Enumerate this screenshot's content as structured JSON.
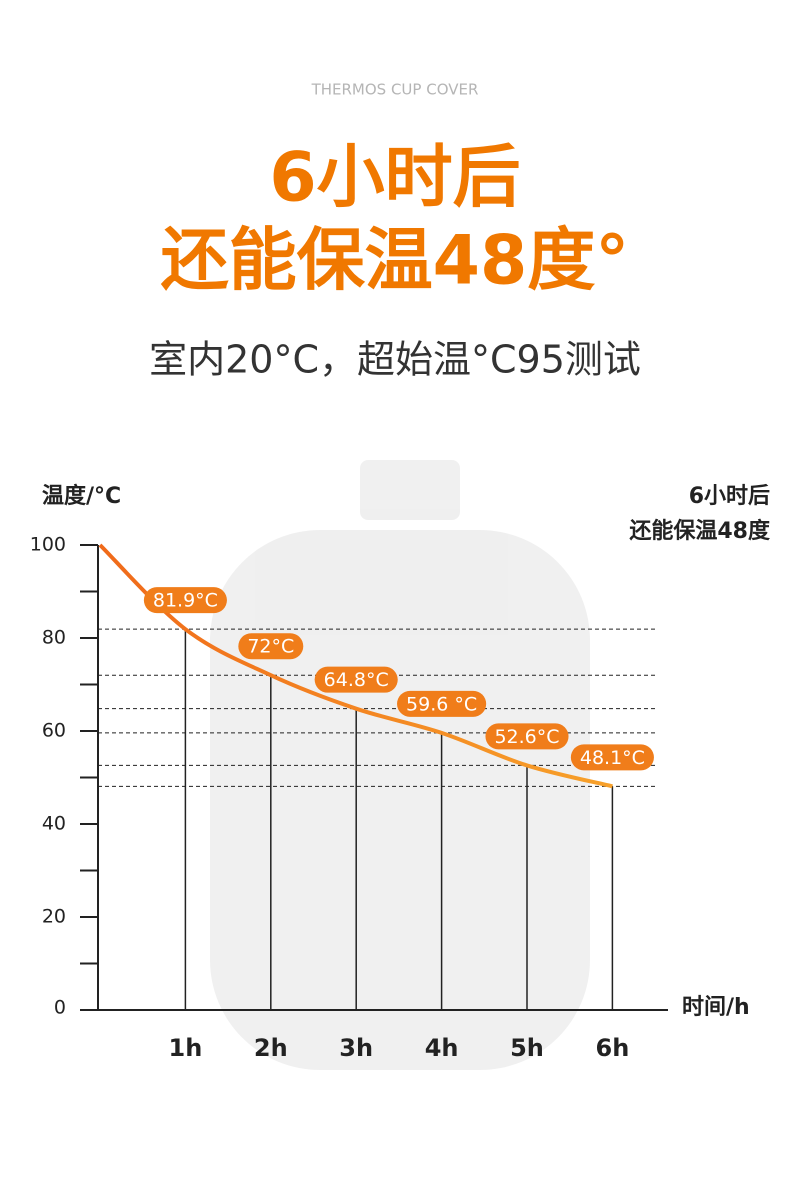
{
  "header": {
    "eyebrow": "THERMOS CUP COVER",
    "title_lines": [
      "6小时后",
      "还能保温48度°"
    ],
    "subtitle": "室内20°C，超始温°C95测试"
  },
  "chart_data": {
    "type": "line",
    "y_label": "温度/°C",
    "x_label": "时间/h",
    "annotation_lines": [
      "6小时后",
      "还能保温48度"
    ],
    "categories": [
      null,
      "1h",
      "2h",
      "3h",
      "4h",
      "5h",
      "6h"
    ],
    "values": [
      100,
      81.9,
      72,
      64.8,
      59.6,
      52.6,
      48.1
    ],
    "value_labels": [
      null,
      "81.9°C",
      "72°C",
      "64.8°C",
      "59.6 °C",
      "52.6°C",
      "48.1°C"
    ],
    "color": "#f06a1a",
    "end_color": "#f7a12a",
    "label_color": "#f07d1a",
    "ylim": [
      0,
      100
    ],
    "yticks": [
      0,
      20,
      40,
      60,
      80,
      100
    ],
    "yticks_minor": [
      10,
      30,
      50,
      70,
      90
    ]
  }
}
